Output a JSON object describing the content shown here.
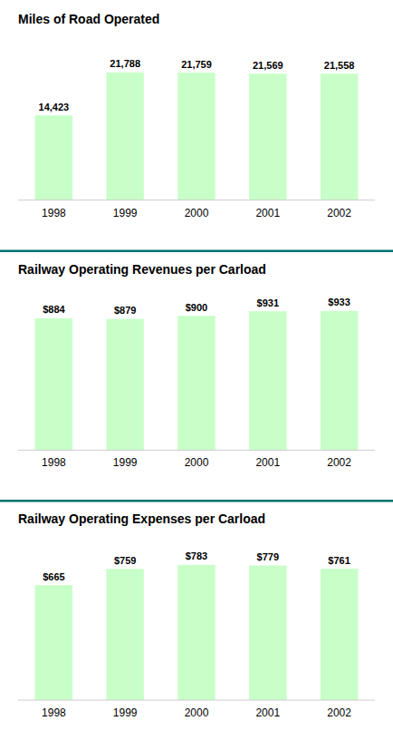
{
  "chart_data": [
    {
      "type": "bar",
      "title": "Miles of Road Operated",
      "categories": [
        "1998",
        "1999",
        "2000",
        "2001",
        "2002"
      ],
      "values": [
        14423,
        21788,
        21759,
        21569,
        21558
      ],
      "value_labels": [
        "14,423",
        "21,788",
        "21,759",
        "21,569",
        "21,558"
      ],
      "ylim": [
        0,
        28000
      ],
      "color": "#c8ffc8",
      "data_labels": true,
      "tick_labels": "x",
      "grid": false
    },
    {
      "type": "bar",
      "title": "Railway Operating Revenues per Carload",
      "categories": [
        "1998",
        "1999",
        "2000",
        "2001",
        "2002"
      ],
      "values": [
        884,
        879,
        900,
        931,
        933
      ],
      "value_labels": [
        "$884",
        "$879",
        "$900",
        "$931",
        "$933"
      ],
      "ylim": [
        0,
        1100
      ],
      "color": "#c8ffc8",
      "data_labels": true,
      "tick_labels": "x",
      "grid": false
    },
    {
      "type": "bar",
      "title": "Railway Operating Expenses per Carload",
      "categories": [
        "1998",
        "1999",
        "2000",
        "2001",
        "2002"
      ],
      "values": [
        665,
        759,
        783,
        779,
        761
      ],
      "value_labels": [
        "$665",
        "$759",
        "$783",
        "$779",
        "$761"
      ],
      "ylim": [
        0,
        950
      ],
      "color": "#c8ffc8",
      "data_labels": true,
      "tick_labels": "x",
      "grid": false
    }
  ]
}
